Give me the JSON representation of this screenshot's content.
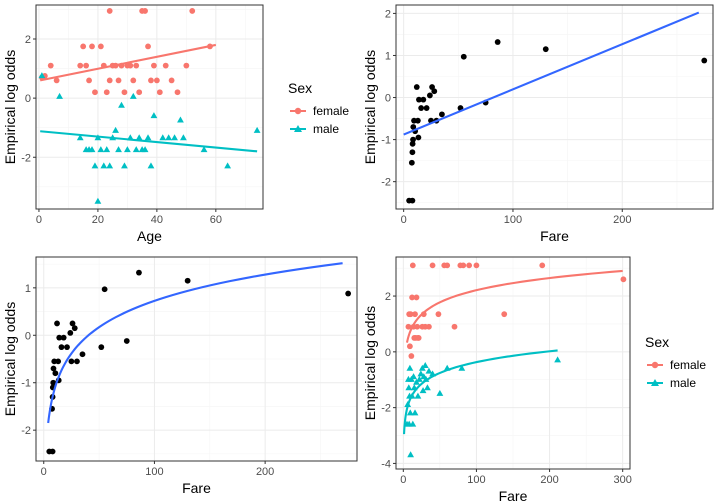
{
  "colors": {
    "female": "#F8766D",
    "male": "#00BFC4",
    "black": "#000000",
    "smooth": "#3366FF",
    "grid_major": "#ebebeb",
    "grid_minor": "#f5f5f5",
    "border": "#333333"
  },
  "chart_data": [
    {
      "type": "scatter",
      "xlabel": "Age",
      "ylabel": "Empirical log odds",
      "xlim": [
        -1,
        76
      ],
      "ylim": [
        -3.75,
        3.15
      ],
      "xticks": [
        0,
        20,
        40,
        60
      ],
      "yticks": [
        -2,
        0,
        2
      ],
      "xminor": [
        10,
        30,
        50,
        70
      ],
      "yminor": [
        -3,
        -1,
        1,
        3
      ],
      "legend": {
        "title": "Sex",
        "position": "right"
      },
      "series": [
        {
          "name": "female",
          "color_key": "female",
          "marker": "circle",
          "points": [
            [
              1,
              0.7
            ],
            [
              2,
              0.75
            ],
            [
              4,
              1.1
            ],
            [
              6,
              0.6
            ],
            [
              14,
              1.1
            ],
            [
              15,
              1.75
            ],
            [
              16,
              1.1
            ],
            [
              17,
              0.6
            ],
            [
              18,
              1.75
            ],
            [
              19,
              0.2
            ],
            [
              21,
              1.75
            ],
            [
              22,
              1.1
            ],
            [
              23,
              0.2
            ],
            [
              24,
              2.95
            ],
            [
              24,
              0.6
            ],
            [
              25,
              1.1
            ],
            [
              26,
              1.1
            ],
            [
              27,
              0.6
            ],
            [
              28,
              1.1
            ],
            [
              29,
              0.2
            ],
            [
              30,
              1.1
            ],
            [
              31,
              1.1
            ],
            [
              32,
              0.6
            ],
            [
              33,
              1.1
            ],
            [
              34,
              0.2
            ],
            [
              35,
              2.95
            ],
            [
              36,
              2.95
            ],
            [
              37,
              1.75
            ],
            [
              38,
              0.6
            ],
            [
              39,
              1.1
            ],
            [
              40,
              0.6
            ],
            [
              41,
              0.2
            ],
            [
              43,
              1.1
            ],
            [
              45,
              0.6
            ],
            [
              47,
              0.2
            ],
            [
              50,
              1.1
            ],
            [
              52,
              2.95
            ],
            [
              58,
              1.75
            ]
          ]
        },
        {
          "name": "male",
          "color_key": "male",
          "marker": "triangle",
          "points": [
            [
              1,
              0.75
            ],
            [
              7,
              0.05
            ],
            [
              14,
              -1.35
            ],
            [
              16,
              -1.75
            ],
            [
              17,
              -1.75
            ],
            [
              18,
              -1.75
            ],
            [
              19,
              -2.3
            ],
            [
              20,
              -1.35
            ],
            [
              20,
              -3.5
            ],
            [
              21,
              -1.75
            ],
            [
              22,
              -2.3
            ],
            [
              23,
              -1.75
            ],
            [
              24,
              -2.3
            ],
            [
              25,
              -1.35
            ],
            [
              26,
              -1.1
            ],
            [
              27,
              -1.75
            ],
            [
              28,
              -0.25
            ],
            [
              29,
              -2.3
            ],
            [
              30,
              -1.75
            ],
            [
              31,
              -1.35
            ],
            [
              32,
              0.05
            ],
            [
              33,
              -1.75
            ],
            [
              34,
              -1.35
            ],
            [
              35,
              -1.75
            ],
            [
              36,
              -1.75
            ],
            [
              37,
              -1.35
            ],
            [
              38,
              -2.3
            ],
            [
              39,
              -0.6
            ],
            [
              42,
              -1.35
            ],
            [
              44,
              -1.35
            ],
            [
              46,
              -1.35
            ],
            [
              48,
              -0.75
            ],
            [
              49,
              -1.35
            ],
            [
              56,
              -1.75
            ],
            [
              64,
              -2.3
            ],
            [
              74,
              -1.1
            ]
          ]
        }
      ],
      "fits": [
        {
          "color_key": "female",
          "kind": "linear",
          "x": [
            0.42,
            60
          ],
          "y": [
            0.6,
            1.8
          ]
        },
        {
          "color_key": "male",
          "kind": "linear",
          "x": [
            0.42,
            74
          ],
          "y": [
            -1.12,
            -1.8
          ]
        }
      ]
    },
    {
      "type": "scatter",
      "xlabel": "Fare",
      "ylabel": "Empirical log odds",
      "xlim": [
        -7,
        283
      ],
      "ylim": [
        -2.65,
        2.2
      ],
      "xticks": [
        0,
        100,
        200
      ],
      "yticks": [
        -2,
        -1,
        0,
        1,
        2
      ],
      "xminor": [
        50,
        150,
        250
      ],
      "yminor": [
        -2.5,
        -1.5,
        -0.5,
        0.5,
        1.5
      ],
      "series": [
        {
          "name": "",
          "color_key": "black",
          "marker": "circle",
          "points": [
            [
              5,
              -2.45
            ],
            [
              8,
              -2.45
            ],
            [
              7.5,
              -1.55
            ],
            [
              8,
              -1.3
            ],
            [
              8.2,
              -1.1
            ],
            [
              8.6,
              -1.0
            ],
            [
              8.8,
              -0.7
            ],
            [
              9.5,
              -0.55
            ],
            [
              10.5,
              -0.8
            ],
            [
              13,
              -0.55
            ],
            [
              13.5,
              -0.95
            ],
            [
              12,
              0.25
            ],
            [
              14,
              -0.05
            ],
            [
              16,
              -0.25
            ],
            [
              18,
              -0.05
            ],
            [
              21,
              -0.25
            ],
            [
              24,
              0.05
            ],
            [
              25,
              -0.55
            ],
            [
              26,
              0.25
            ],
            [
              28,
              0.15
            ],
            [
              30,
              -0.55
            ],
            [
              35,
              -0.4
            ],
            [
              52,
              -0.25
            ],
            [
              55,
              0.97
            ],
            [
              75,
              -0.12
            ],
            [
              86,
              1.32
            ],
            [
              130,
              1.15
            ],
            [
              275,
              0.88
            ]
          ]
        }
      ],
      "fits": [
        {
          "color_key": "smooth",
          "kind": "linear",
          "x": [
            0,
            270
          ],
          "y": [
            -0.88,
            2.02
          ]
        }
      ]
    },
    {
      "type": "scatter",
      "xlabel": "Fare",
      "ylabel": "Empirical log odds",
      "xlim": [
        -7,
        283
      ],
      "ylim": [
        -2.65,
        1.65
      ],
      "xticks": [
        0,
        100,
        200
      ],
      "yticks": [
        -2,
        -1,
        0,
        1
      ],
      "xminor": [
        50,
        150,
        250
      ],
      "yminor": [
        -2.5,
        -1.5,
        -0.5,
        0.5,
        1.5
      ],
      "series": [
        {
          "name": "",
          "color_key": "black",
          "marker": "circle",
          "points": [
            [
              5,
              -2.45
            ],
            [
              8,
              -2.45
            ],
            [
              7.5,
              -1.55
            ],
            [
              8,
              -1.3
            ],
            [
              8.2,
              -1.1
            ],
            [
              8.6,
              -1.0
            ],
            [
              8.8,
              -0.7
            ],
            [
              9.5,
              -0.55
            ],
            [
              10.5,
              -0.8
            ],
            [
              13,
              -0.55
            ],
            [
              13.5,
              -0.95
            ],
            [
              12,
              0.25
            ],
            [
              14,
              -0.05
            ],
            [
              16,
              -0.25
            ],
            [
              18,
              -0.05
            ],
            [
              21,
              -0.25
            ],
            [
              24,
              0.05
            ],
            [
              25,
              -0.55
            ],
            [
              26,
              0.25
            ],
            [
              28,
              0.15
            ],
            [
              30,
              -0.55
            ],
            [
              35,
              -0.4
            ],
            [
              52,
              -0.25
            ],
            [
              55,
              0.97
            ],
            [
              75,
              -0.12
            ],
            [
              86,
              1.32
            ],
            [
              130,
              1.15
            ],
            [
              275,
              0.88
            ]
          ]
        }
      ],
      "fits": [
        {
          "color_key": "smooth",
          "kind": "log",
          "x": [
            4,
            270
          ],
          "y": [
            -1.85,
            1.52
          ]
        }
      ]
    },
    {
      "type": "scatter",
      "xlabel": "Fare",
      "ylabel": "Empirical log odds",
      "xlim": [
        -10,
        310
      ],
      "ylim": [
        -4.2,
        3.4
      ],
      "xticks": [
        0,
        100,
        200,
        300
      ],
      "yticks": [
        -4,
        -2,
        0,
        2
      ],
      "xminor": [
        50,
        150,
        250
      ],
      "yminor": [
        -3,
        -1,
        1,
        3
      ],
      "legend": {
        "title": "Sex",
        "position": "right"
      },
      "series": [
        {
          "name": "female",
          "color_key": "female",
          "marker": "circle",
          "points": [
            [
              7,
              0.9
            ],
            [
              8,
              1.35
            ],
            [
              9,
              0.2
            ],
            [
              10,
              1.35
            ],
            [
              11,
              -0.15
            ],
            [
              12,
              1.95
            ],
            [
              13,
              3.1
            ],
            [
              14,
              0.9
            ],
            [
              15,
              0.5
            ],
            [
              16,
              1.35
            ],
            [
              17,
              0.5
            ],
            [
              18,
              1.95
            ],
            [
              19,
              0.9
            ],
            [
              20,
              0.5
            ],
            [
              21,
              0.5
            ],
            [
              26,
              0.9
            ],
            [
              28,
              1.35
            ],
            [
              30,
              0.9
            ],
            [
              35,
              0.9
            ],
            [
              40,
              3.1
            ],
            [
              48,
              1.35
            ],
            [
              56,
              3.1
            ],
            [
              60,
              3.1
            ],
            [
              70,
              0.9
            ],
            [
              78,
              3.1
            ],
            [
              82,
              3.1
            ],
            [
              90,
              3.1
            ],
            [
              100,
              3.1
            ],
            [
              138,
              1.35
            ],
            [
              190,
              3.1
            ],
            [
              301,
              2.6
            ]
          ]
        },
        {
          "name": "male",
          "color_key": "male",
          "marker": "triangle",
          "points": [
            [
              5,
              -2.6
            ],
            [
              6,
              -1.9
            ],
            [
              7,
              -1.0
            ],
            [
              7.5,
              -1.3
            ],
            [
              8,
              -2.6
            ],
            [
              8.5,
              -1.6
            ],
            [
              9,
              -0.6
            ],
            [
              9.5,
              -2.2
            ],
            [
              10,
              -3.7
            ],
            [
              11,
              -1.0
            ],
            [
              12,
              -1.6
            ],
            [
              13,
              -2.6
            ],
            [
              14,
              -0.9
            ],
            [
              15,
              -1.3
            ],
            [
              16,
              -2.2
            ],
            [
              18,
              -1.1
            ],
            [
              20,
              -1.6
            ],
            [
              22,
              -1.0
            ],
            [
              24,
              -0.8
            ],
            [
              26,
              -0.6
            ],
            [
              27,
              -1.4
            ],
            [
              28,
              -0.9
            ],
            [
              30,
              -0.5
            ],
            [
              31,
              -1.0
            ],
            [
              33,
              -1.3
            ],
            [
              35,
              -0.7
            ],
            [
              40,
              -0.8
            ],
            [
              50,
              -1.5
            ],
            [
              60,
              -0.6
            ],
            [
              80,
              -0.6
            ],
            [
              211,
              -0.3
            ]
          ]
        }
      ],
      "fits": [
        {
          "color_key": "female",
          "kind": "log",
          "x": [
            5,
            300
          ],
          "y": [
            0.33,
            2.9
          ]
        },
        {
          "color_key": "male",
          "kind": "log",
          "x": [
            1,
            211
          ],
          "y": [
            -2.95,
            0.05
          ]
        }
      ]
    }
  ],
  "legend": {
    "top": {
      "title": "Sex",
      "items": [
        "female",
        "male"
      ]
    },
    "bottom": {
      "title": "Sex",
      "items": [
        "female",
        "male"
      ]
    }
  }
}
